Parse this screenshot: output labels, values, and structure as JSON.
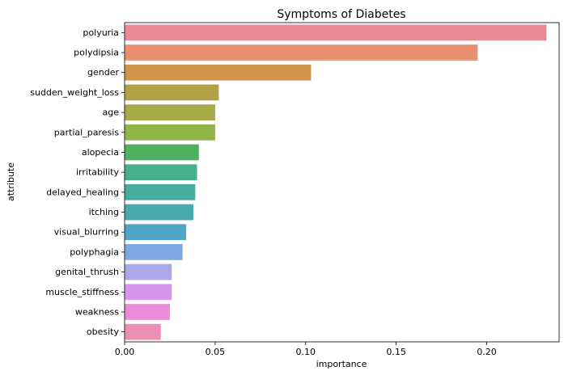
{
  "chart_data": {
    "type": "bar",
    "orientation": "horizontal",
    "title": "Symptoms of Diabetes",
    "xlabel": "importance",
    "ylabel": "attribute",
    "xlim": [
      0,
      0.24
    ],
    "xticks": [
      "0.00",
      "0.05",
      "0.10",
      "0.15",
      "0.20"
    ],
    "grid": false,
    "categories": [
      "polyuria",
      "polydipsia",
      "gender",
      "sudden_weight_loss",
      "age",
      "partial_paresis",
      "alopecia",
      "irritability",
      "delayed_healing",
      "itching",
      "visual_blurring",
      "polyphagia",
      "genital_thrush",
      "muscle_stiffness",
      "weakness",
      "obesity"
    ],
    "values": [
      0.233,
      0.195,
      0.103,
      0.052,
      0.05,
      0.05,
      0.041,
      0.04,
      0.039,
      0.038,
      0.034,
      0.032,
      0.026,
      0.026,
      0.025,
      0.02
    ],
    "colors": [
      "#ec8a95",
      "#e98f72",
      "#d09549",
      "#b2a246",
      "#a6aa45",
      "#8fb447",
      "#4fb160",
      "#48af8d",
      "#46ac9e",
      "#48a9ae",
      "#4ca6c4",
      "#7fa7e3",
      "#ada7ea",
      "#d596eb",
      "#ea8bd7",
      "#ec8fb5"
    ]
  }
}
